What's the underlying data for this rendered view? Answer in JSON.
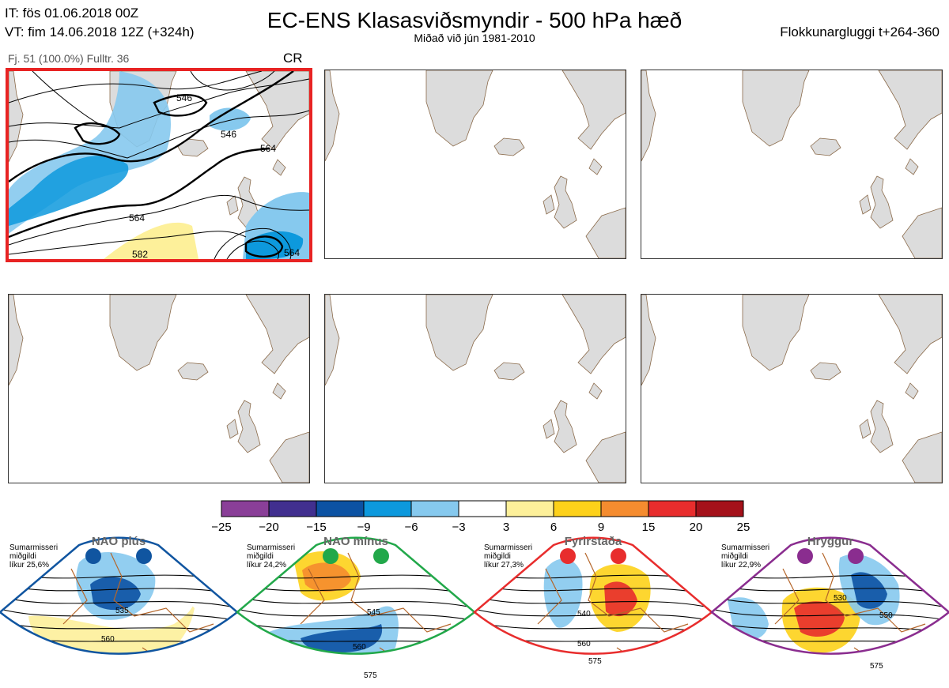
{
  "header": {
    "it_line": "IT: fös 01.06.2018 00Z",
    "vt_line": "VT: fim 14.06.2018 12Z  (+324h)",
    "title": "EC-ENS Klasasviðsmyndir - 500 hPa hæð",
    "subtitle": "Miðað við jún 1981-2010",
    "window": "Flokkunargluggi t+264-360"
  },
  "main_panel": {
    "stats": "Fj. 51 (100.0%)   Fulltr. 36",
    "regime_code": "CR",
    "contour_labels": [
      "546",
      "546",
      "564",
      "564",
      "564",
      "582"
    ]
  },
  "colorbar": {
    "ticks": [
      "−25",
      "−20",
      "−15",
      "−9",
      "−6",
      "−3",
      "3",
      "6",
      "9",
      "15",
      "20",
      "25"
    ],
    "colors": [
      "#8a3f98",
      "#412f8f",
      "#0c52a3",
      "#0d99dd",
      "#86c9ee",
      "#ffffff",
      "#fdf09a",
      "#fdd11a",
      "#f58c2f",
      "#e82d2d",
      "#a4111a"
    ]
  },
  "regimes": [
    {
      "title": "NAO plús",
      "season": "Sumarmisseri",
      "median": "miðgildi",
      "prob": "líkur 25,6%",
      "color": "#1055a0",
      "labels": [
        "535",
        "560"
      ]
    },
    {
      "title": "NAO mínus",
      "season": "Sumarmisseri",
      "median": "miðgildi",
      "prob": "líkur 24,2%",
      "color": "#22a84a",
      "labels": [
        "545",
        "560",
        "575"
      ]
    },
    {
      "title": "Fyrirstaða",
      "season": "Sumarmisseri",
      "median": "miðgildi",
      "prob": "líkur 27,3%",
      "color": "#e82d2d",
      "labels": [
        "540",
        "560",
        "575"
      ]
    },
    {
      "title": "Hryggur",
      "season": "Sumarmisseri",
      "median": "miðgildi",
      "prob": "líkur 22,9%",
      "color": "#8a2d8f",
      "labels": [
        "530",
        "550",
        "575"
      ]
    }
  ]
}
